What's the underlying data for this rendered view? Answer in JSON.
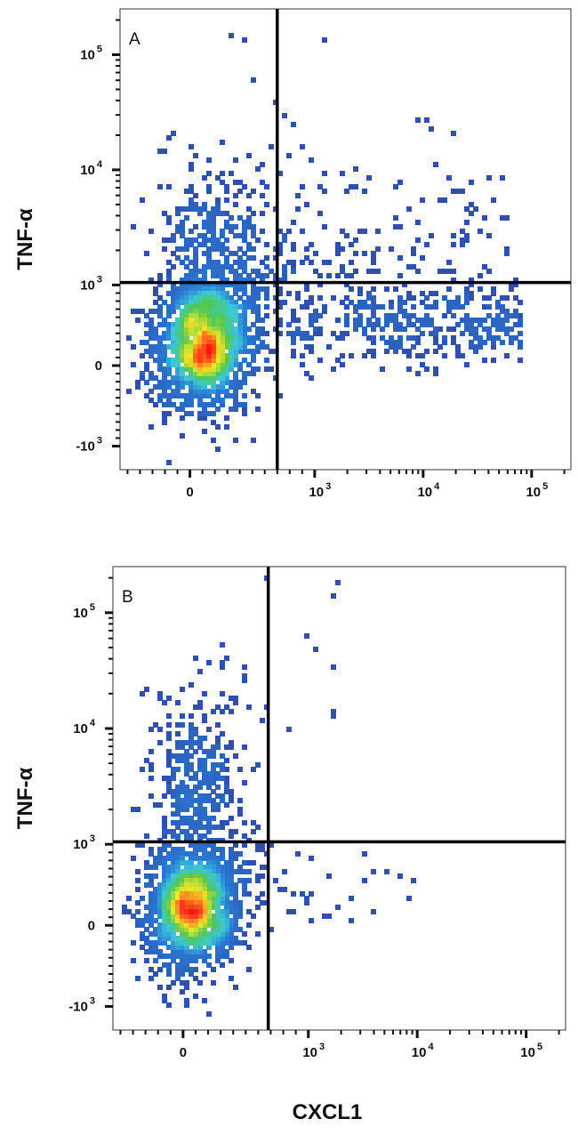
{
  "chart_data": [
    {
      "type": "scatter",
      "subtype": "flow-cytometry-density-dot-plot",
      "panel_label": "A",
      "xlabel": "",
      "ylabel": "TNF-α",
      "xscale": "biexponential",
      "yscale": "biexponential",
      "xlim": [
        -560,
        230000
      ],
      "ylim": [
        -1600,
        250000
      ],
      "x_ticks": [
        {
          "value": 0,
          "label": "0"
        },
        {
          "value": 1000,
          "label": "10",
          "exp": "3"
        },
        {
          "value": 10000,
          "label": "10",
          "exp": "4"
        },
        {
          "value": 100000,
          "label": "10",
          "exp": "5"
        }
      ],
      "y_ticks": [
        {
          "value": -1000,
          "label": "-10",
          "exp": "3"
        },
        {
          "value": 0,
          "label": "0"
        },
        {
          "value": 1000,
          "label": "10",
          "exp": "3"
        },
        {
          "value": 10000,
          "label": "10",
          "exp": "4"
        },
        {
          "value": 100000,
          "label": "10",
          "exp": "5"
        }
      ],
      "quadrant_gate": {
        "x": 700,
        "y": 1050
      },
      "grid": false,
      "populations": [
        {
          "x": [
            100,
            100
          ],
          "y": [
            250,
            250
          ],
          "spread": [
            0.22,
            0.28
          ],
          "n": 1500,
          "shape": "gaussian"
        },
        {
          "x": [
            80,
            250
          ],
          "y": [
            1000,
            6000
          ],
          "spread": [
            0.25,
            0.3
          ],
          "n": 320,
          "shape": "gaussian"
        },
        {
          "x": [
            300,
            700
          ],
          "y": [
            200,
            1500
          ],
          "spread": [
            0.2,
            0.2
          ],
          "n": 180,
          "shape": "gaussian"
        },
        {
          "x": [
            800,
            80000
          ],
          "y": [
            150,
            900
          ],
          "spread": [
            0,
            0.12
          ],
          "n": 380,
          "shape": "band"
        },
        {
          "x": [
            800,
            60000
          ],
          "y": [
            1200,
            10000
          ],
          "spread": [
            0,
            0
          ],
          "n": 110,
          "shape": "uniform"
        },
        {
          "x": [
            200,
            2000
          ],
          "y": [
            10000,
            200000
          ],
          "spread": [
            0,
            0
          ],
          "n": 10,
          "shape": "uniform"
        },
        {
          "x": [
            8000,
            20000
          ],
          "y": [
            10000,
            30000
          ],
          "spread": [
            0,
            0
          ],
          "n": 5,
          "shape": "uniform"
        }
      ]
    },
    {
      "type": "scatter",
      "subtype": "flow-cytometry-density-dot-plot",
      "panel_label": "B",
      "xlabel": "CXCL1",
      "ylabel": "TNF-α",
      "xscale": "biexponential",
      "yscale": "biexponential",
      "xlim": [
        -560,
        230000
      ],
      "ylim": [
        -1600,
        250000
      ],
      "x_ticks": [
        {
          "value": 0,
          "label": "0"
        },
        {
          "value": 1000,
          "label": "10",
          "exp": "3"
        },
        {
          "value": 10000,
          "label": "10",
          "exp": "4"
        },
        {
          "value": 100000,
          "label": "10",
          "exp": "5"
        }
      ],
      "y_ticks": [
        {
          "value": -1000,
          "label": "-10",
          "exp": "3"
        },
        {
          "value": 0,
          "label": "0"
        },
        {
          "value": 1000,
          "label": "10",
          "exp": "3"
        },
        {
          "value": 10000,
          "label": "10",
          "exp": "4"
        },
        {
          "value": 100000,
          "label": "10",
          "exp": "5"
        }
      ],
      "quadrant_gate": {
        "x": 680,
        "y": 1050
      },
      "grid": false,
      "populations": [
        {
          "x": [
            60,
            60
          ],
          "y": [
            200,
            200
          ],
          "spread": [
            0.2,
            0.25
          ],
          "n": 1500,
          "shape": "gaussian"
        },
        {
          "x": [
            60,
            150
          ],
          "y": [
            1000,
            8000
          ],
          "spread": [
            0.2,
            0.35
          ],
          "n": 450,
          "shape": "gaussian"
        },
        {
          "x": [
            250,
            600
          ],
          "y": [
            150,
            900
          ],
          "spread": [
            0.2,
            0.2
          ],
          "n": 120,
          "shape": "gaussian"
        },
        {
          "x": [
            800,
            12000
          ],
          "y": [
            50,
            900
          ],
          "spread": [
            0,
            0
          ],
          "n": 28,
          "shape": "uniform"
        },
        {
          "x": [
            150,
            2000
          ],
          "y": [
            10000,
            200000
          ],
          "spread": [
            0,
            0
          ],
          "n": 12,
          "shape": "uniform"
        }
      ]
    }
  ],
  "colors": {
    "low_density": "#3050b0",
    "high_density": "#ff1010",
    "gate": "#000000"
  }
}
